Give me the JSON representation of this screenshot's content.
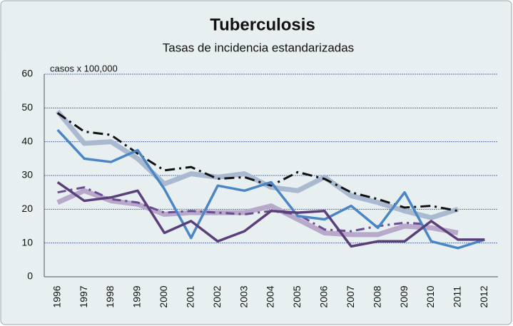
{
  "chart_data": {
    "type": "line",
    "title": "Tuberculosis",
    "subtitle": "Tasas de incidencia estandarizadas",
    "annotation": "casos x 100,000",
    "categories": [
      "1996",
      "1997",
      "1998",
      "1999",
      "2000",
      "2001",
      "2002",
      "2003",
      "2004",
      "2005",
      "2006",
      "2007",
      "2008",
      "2009",
      "2010",
      "2011",
      "2012"
    ],
    "ylim": [
      0,
      60
    ],
    "yticks": [
      0,
      10,
      20,
      30,
      40,
      50,
      60
    ],
    "grid": true,
    "series": [
      {
        "color": "#a9b9cf",
        "width": 7,
        "dash": "none",
        "values": [
          49,
          39.5,
          40,
          35,
          27.5,
          30.5,
          29.5,
          30.5,
          26.5,
          25.5,
          29.5,
          24,
          22,
          19.5,
          17.5,
          20,
          null
        ]
      },
      {
        "color": "#111111",
        "width": 3,
        "dash": "14 6 3 6",
        "values": [
          48.5,
          43,
          42,
          36.5,
          31.5,
          32.5,
          29,
          29.5,
          27,
          31,
          29,
          25,
          23,
          20.5,
          21,
          19.5,
          null
        ]
      },
      {
        "color": "#b8a9cb",
        "width": 7,
        "dash": "none",
        "values": [
          22,
          25.5,
          22.5,
          21.5,
          18.5,
          19,
          19,
          19,
          21,
          17,
          13,
          12.5,
          12.5,
          15,
          14.5,
          13,
          null
        ]
      },
      {
        "color": "#6a4c93",
        "width": 3,
        "dash": "12 6 3 6",
        "values": [
          25,
          26.5,
          23,
          22,
          19,
          19.5,
          19,
          18.5,
          19.5,
          18.5,
          14,
          13.5,
          15,
          16,
          15.5,
          null,
          null
        ]
      },
      {
        "color": "#4a86c5",
        "width": 3.5,
        "dash": "none",
        "values": [
          43.5,
          35,
          34,
          37.5,
          26,
          11.5,
          27,
          25.5,
          28,
          18,
          17,
          21,
          14.5,
          25,
          10.5,
          8.5,
          11
        ]
      },
      {
        "color": "#5b3f7a",
        "width": 3.5,
        "dash": "none",
        "values": [
          28,
          22.5,
          23.5,
          25.5,
          13,
          16.5,
          10.5,
          13.5,
          19.5,
          19,
          19.5,
          9,
          10.5,
          10.5,
          16.5,
          11,
          11
        ]
      }
    ]
  }
}
